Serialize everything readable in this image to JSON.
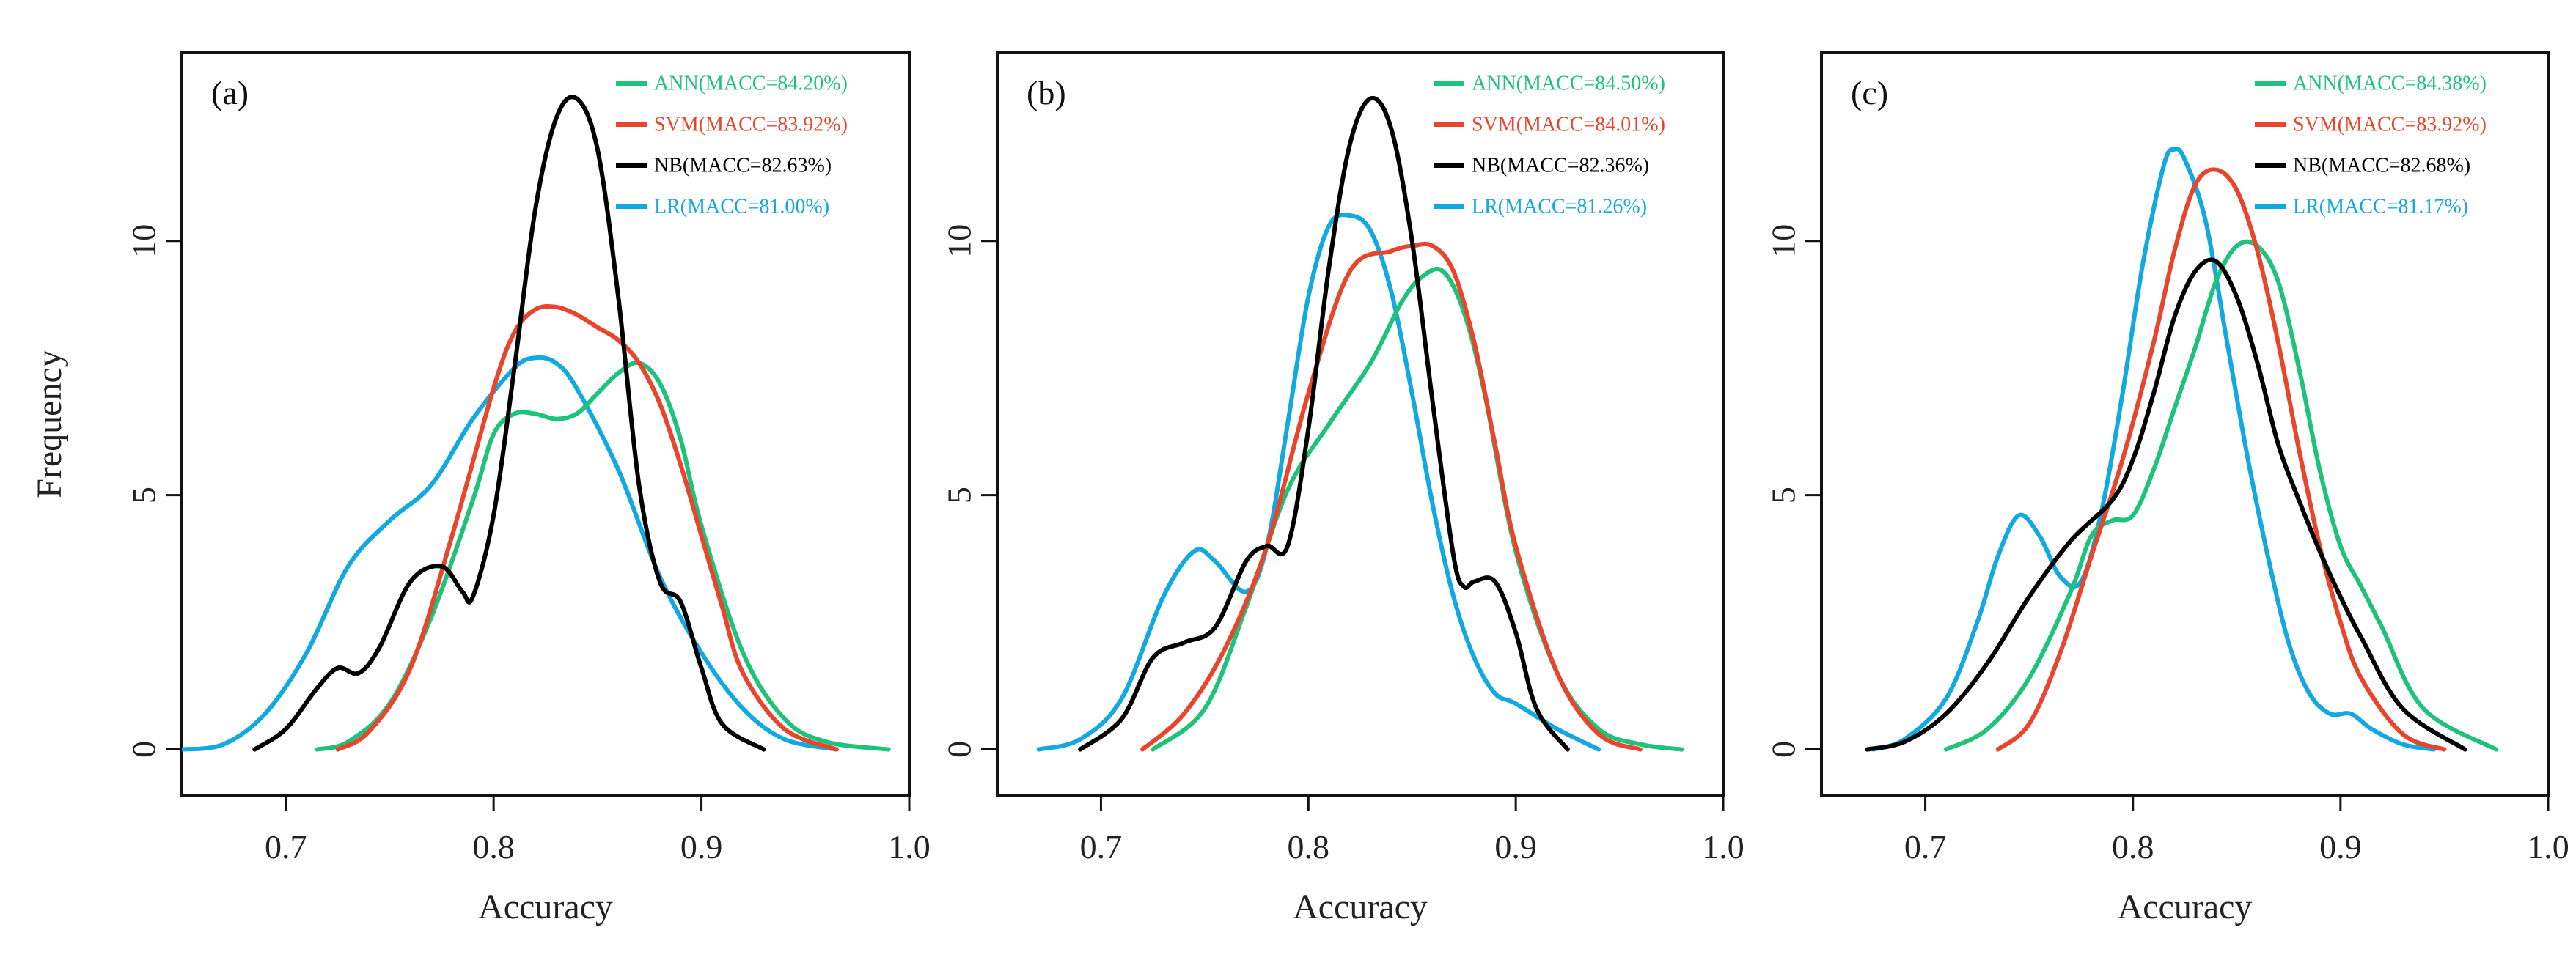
{
  "colors": {
    "ANN": "#1fc27a",
    "SVM": "#e8452c",
    "NB": "#000000",
    "LR": "#11a9e0"
  },
  "chart_data": [
    {
      "type": "line",
      "label": "(a)",
      "xlabel": "Accuracy",
      "ylabel": "Frequency",
      "xlim": [
        0.65,
        1.0
      ],
      "ylim": [
        -0.9,
        13.7
      ],
      "xticks": [
        "0.7",
        "0.8",
        "0.9",
        "1.0"
      ],
      "yticks": [
        "0",
        "5",
        "10"
      ],
      "series": [
        {
          "name": "ANN",
          "legend": "ANN(MACC=84.20%)",
          "color": "#1fc27a",
          "x": [
            0.715,
            0.73,
            0.75,
            0.77,
            0.79,
            0.8,
            0.81,
            0.82,
            0.83,
            0.84,
            0.85,
            0.86,
            0.87,
            0.88,
            0.89,
            0.9,
            0.92,
            0.94,
            0.96,
            0.99
          ],
          "y": [
            0,
            0.15,
            0.9,
            2.6,
            4.9,
            6.2,
            6.6,
            6.6,
            6.5,
            6.6,
            7.0,
            7.4,
            7.6,
            7.2,
            6.1,
            4.4,
            1.9,
            0.6,
            0.15,
            0
          ]
        },
        {
          "name": "SVM",
          "legend": "SVM(MACC=83.92%)",
          "color": "#e8452c",
          "x": [
            0.725,
            0.74,
            0.76,
            0.78,
            0.8,
            0.81,
            0.82,
            0.83,
            0.84,
            0.85,
            0.86,
            0.87,
            0.88,
            0.89,
            0.9,
            0.91,
            0.92,
            0.94,
            0.965
          ],
          "y": [
            0,
            0.35,
            1.6,
            4.2,
            7.1,
            8.2,
            8.65,
            8.7,
            8.55,
            8.3,
            8.05,
            7.6,
            6.8,
            5.6,
            4.2,
            2.8,
            1.5,
            0.4,
            0
          ]
        },
        {
          "name": "NB",
          "legend": "NB(MACC=82.63%)",
          "color": "#000000",
          "x": [
            0.685,
            0.7,
            0.715,
            0.725,
            0.735,
            0.745,
            0.76,
            0.775,
            0.785,
            0.79,
            0.8,
            0.81,
            0.82,
            0.83,
            0.84,
            0.85,
            0.86,
            0.87,
            0.88,
            0.89,
            0.9,
            0.91,
            0.93
          ],
          "y": [
            0,
            0.4,
            1.2,
            1.6,
            1.5,
            2.0,
            3.3,
            3.6,
            3.1,
            3.0,
            4.6,
            7.5,
            10.6,
            12.4,
            12.8,
            11.8,
            8.9,
            5.2,
            3.3,
            2.9,
            1.6,
            0.5,
            0
          ]
        },
        {
          "name": "LR",
          "legend": "LR(MACC=81.00%)",
          "color": "#11a9e0",
          "x": [
            0.65,
            0.67,
            0.69,
            0.71,
            0.73,
            0.75,
            0.77,
            0.79,
            0.81,
            0.82,
            0.83,
            0.84,
            0.86,
            0.88,
            0.9,
            0.92,
            0.94,
            0.965
          ],
          "y": [
            0,
            0.1,
            0.7,
            1.9,
            3.6,
            4.5,
            5.2,
            6.5,
            7.5,
            7.7,
            7.6,
            7.1,
            5.5,
            3.4,
            1.9,
            0.8,
            0.2,
            0
          ]
        }
      ]
    },
    {
      "type": "line",
      "label": "(b)",
      "xlabel": "Accuracy",
      "ylabel": "",
      "xlim": [
        0.65,
        1.0
      ],
      "ylim": [
        -0.9,
        13.7
      ],
      "xticks": [
        "0.7",
        "0.8",
        "0.9",
        "1.0"
      ],
      "yticks": [
        "0",
        "5",
        "10"
      ],
      "series": [
        {
          "name": "ANN",
          "legend": "ANN(MACC=84.50%)",
          "color": "#1fc27a",
          "x": [
            0.725,
            0.75,
            0.77,
            0.79,
            0.81,
            0.83,
            0.845,
            0.855,
            0.865,
            0.875,
            0.885,
            0.9,
            0.92,
            0.94,
            0.96,
            0.98
          ],
          "y": [
            0,
            0.8,
            2.8,
            5.1,
            6.4,
            7.6,
            8.8,
            9.3,
            9.4,
            8.6,
            7.0,
            3.9,
            1.5,
            0.4,
            0.1,
            0
          ]
        },
        {
          "name": "SVM",
          "legend": "SVM(MACC=84.01%)",
          "color": "#e8452c",
          "x": [
            0.72,
            0.74,
            0.76,
            0.78,
            0.8,
            0.82,
            0.84,
            0.85,
            0.86,
            0.87,
            0.88,
            0.89,
            0.9,
            0.92,
            0.94,
            0.96
          ],
          "y": [
            0,
            0.7,
            2.0,
            4.0,
            7.0,
            9.4,
            9.8,
            9.9,
            9.9,
            9.4,
            8.0,
            6.0,
            4.0,
            1.5,
            0.3,
            0
          ]
        },
        {
          "name": "NB",
          "legend": "NB(MACC=82.36%)",
          "color": "#000000",
          "x": [
            0.69,
            0.71,
            0.725,
            0.74,
            0.755,
            0.77,
            0.78,
            0.79,
            0.8,
            0.81,
            0.82,
            0.83,
            0.84,
            0.85,
            0.86,
            0.87,
            0.875,
            0.88,
            0.89,
            0.9,
            0.91,
            0.925
          ],
          "y": [
            0,
            0.6,
            1.8,
            2.1,
            2.4,
            3.7,
            4.0,
            4.0,
            6.3,
            9.5,
            11.9,
            12.8,
            12.2,
            10.0,
            6.8,
            3.8,
            3.2,
            3.3,
            3.3,
            2.3,
            0.8,
            0
          ]
        },
        {
          "name": "LR",
          "legend": "LR(MACC=81.26%)",
          "color": "#11a9e0",
          "x": [
            0.67,
            0.69,
            0.71,
            0.73,
            0.745,
            0.755,
            0.77,
            0.78,
            0.79,
            0.8,
            0.81,
            0.82,
            0.83,
            0.84,
            0.85,
            0.86,
            0.87,
            0.88,
            0.89,
            0.9,
            0.92,
            0.94
          ],
          "y": [
            0,
            0.2,
            1.0,
            3.0,
            3.9,
            3.7,
            3.1,
            4.0,
            6.4,
            8.9,
            10.3,
            10.5,
            10.2,
            9.0,
            7.0,
            4.8,
            3.0,
            1.8,
            1.1,
            0.9,
            0.4,
            0
          ]
        }
      ]
    },
    {
      "type": "line",
      "label": "(c)",
      "xlabel": "Accuracy",
      "ylabel": "",
      "xlim": [
        0.65,
        1.0
      ],
      "ylim": [
        -0.9,
        13.7
      ],
      "xticks": [
        "0.7",
        "0.8",
        "0.9",
        "1.0"
      ],
      "yticks": [
        "0",
        "5",
        "10"
      ],
      "series": [
        {
          "name": "ANN",
          "legend": "ANN(MACC=84.38%)",
          "color": "#1fc27a",
          "x": [
            0.71,
            0.73,
            0.75,
            0.77,
            0.78,
            0.79,
            0.8,
            0.81,
            0.82,
            0.83,
            0.84,
            0.85,
            0.86,
            0.87,
            0.88,
            0.89,
            0.9,
            0.91,
            0.92,
            0.94,
            0.975
          ],
          "y": [
            0,
            0.4,
            1.4,
            3.1,
            4.2,
            4.5,
            4.6,
            5.5,
            6.7,
            7.9,
            9.2,
            9.9,
            9.9,
            9.2,
            7.5,
            5.5,
            4.0,
            3.2,
            2.4,
            0.8,
            0
          ]
        },
        {
          "name": "SVM",
          "legend": "SVM(MACC=83.92%)",
          "color": "#e8452c",
          "x": [
            0.735,
            0.75,
            0.765,
            0.78,
            0.795,
            0.81,
            0.82,
            0.83,
            0.84,
            0.85,
            0.86,
            0.87,
            0.88,
            0.89,
            0.9,
            0.91,
            0.93,
            0.95
          ],
          "y": [
            0,
            0.5,
            1.9,
            3.8,
            5.7,
            8.0,
            9.8,
            11.1,
            11.4,
            11.0,
            9.8,
            8.0,
            5.9,
            4.0,
            2.5,
            1.4,
            0.3,
            0
          ]
        },
        {
          "name": "NB",
          "legend": "NB(MACC=82.68%)",
          "color": "#000000",
          "x": [
            0.672,
            0.69,
            0.71,
            0.73,
            0.75,
            0.77,
            0.79,
            0.8,
            0.81,
            0.82,
            0.83,
            0.84,
            0.85,
            0.86,
            0.87,
            0.88,
            0.89,
            0.9,
            0.91,
            0.93,
            0.96
          ],
          "y": [
            0,
            0.15,
            0.7,
            1.7,
            3.0,
            4.1,
            4.9,
            5.7,
            7.0,
            8.5,
            9.4,
            9.6,
            8.9,
            7.6,
            6.0,
            4.9,
            3.9,
            3.0,
            2.2,
            0.8,
            0
          ]
        },
        {
          "name": "LR",
          "legend": "LR(MACC=81.17%)",
          "color": "#11a9e0",
          "x": [
            0.675,
            0.69,
            0.71,
            0.725,
            0.735,
            0.745,
            0.755,
            0.765,
            0.775,
            0.785,
            0.795,
            0.805,
            0.815,
            0.82,
            0.825,
            0.835,
            0.845,
            0.855,
            0.865,
            0.875,
            0.885,
            0.895,
            0.905,
            0.915,
            0.93,
            0.945
          ],
          "y": [
            0,
            0.2,
            1.0,
            2.5,
            3.8,
            4.6,
            4.2,
            3.4,
            3.3,
            4.7,
            7.0,
            9.6,
            11.5,
            11.8,
            11.6,
            10.4,
            8.1,
            5.8,
            3.8,
            2.1,
            1.1,
            0.7,
            0.7,
            0.4,
            0.1,
            0
          ]
        }
      ]
    }
  ]
}
